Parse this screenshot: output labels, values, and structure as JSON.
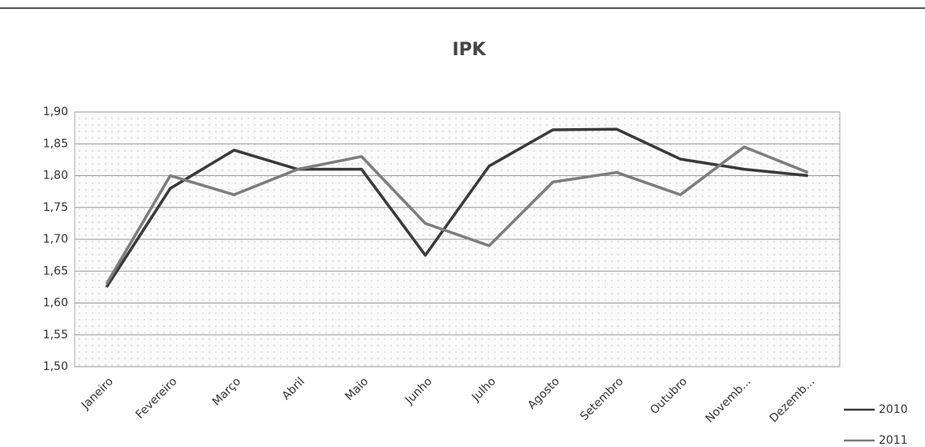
{
  "chart_data": {
    "type": "line",
    "title": "IPK",
    "categories": [
      "Janeiro",
      "Fevereiro",
      "Março",
      "Abril",
      "Maio",
      "Junho",
      "Julho",
      "Agosto",
      "Setembro",
      "Outubro",
      "Novemb...",
      "Dezemb..."
    ],
    "series": [
      {
        "name": "2010",
        "color": "#3a3a3a",
        "values": [
          1.625,
          1.78,
          1.84,
          1.81,
          1.81,
          1.675,
          1.815,
          1.872,
          1.873,
          1.826,
          1.81,
          1.8
        ]
      },
      {
        "name": "2011",
        "color": "#7d7d7d",
        "values": [
          1.63,
          1.8,
          1.77,
          1.81,
          1.83,
          1.725,
          1.69,
          1.79,
          1.805,
          1.77,
          1.845,
          1.805
        ]
      }
    ],
    "ylim": [
      1.5,
      1.9
    ],
    "yticks": [
      {
        "value": 1.5,
        "label": "1,50"
      },
      {
        "value": 1.55,
        "label": "1,55"
      },
      {
        "value": 1.6,
        "label": "1,60"
      },
      {
        "value": 1.65,
        "label": "1,65"
      },
      {
        "value": 1.7,
        "label": "1,70"
      },
      {
        "value": 1.75,
        "label": "1,75"
      },
      {
        "value": 1.8,
        "label": "1,80"
      },
      {
        "value": 1.85,
        "label": "1,85"
      },
      {
        "value": 1.9,
        "label": "1,90"
      }
    ],
    "grid": true
  }
}
